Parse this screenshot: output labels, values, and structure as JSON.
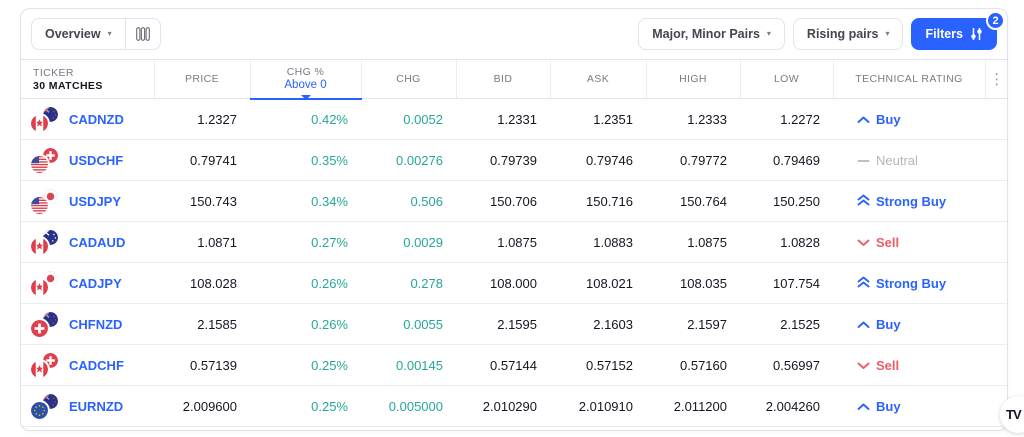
{
  "toolbar": {
    "overview_label": "Overview",
    "pairs_filter_label": "Major, Minor Pairs",
    "rising_filter_label": "Rising pairs",
    "filters_label": "Filters",
    "filters_badge": "2"
  },
  "table": {
    "header": {
      "ticker": "TICKER",
      "matches": "30 MATCHES",
      "price": "PRICE",
      "chg_pct": "CHG %",
      "chg_pct_filter": "Above 0",
      "chg": "CHG",
      "bid": "BID",
      "ask": "ASK",
      "high": "HIGH",
      "low": "LOW",
      "rating": "TECHNICAL RATING"
    },
    "rows": [
      {
        "ticker": "CADNZD",
        "base": "cad",
        "quote": "nzd",
        "price": "1.2327",
        "chg_pct": "0.42%",
        "chg": "0.0052",
        "bid": "1.2331",
        "ask": "1.2351",
        "high": "1.2333",
        "low": "1.2272",
        "rating": "Buy",
        "direction": "up"
      },
      {
        "ticker": "USDCHF",
        "base": "usd",
        "quote": "chf",
        "price": "0.79741",
        "chg_pct": "0.35%",
        "chg": "0.00276",
        "bid": "0.79739",
        "ask": "0.79746",
        "high": "0.79772",
        "low": "0.79469",
        "rating": "Neutral",
        "direction": "neutral"
      },
      {
        "ticker": "USDJPY",
        "base": "usd",
        "quote": "jpy",
        "price": "150.743",
        "chg_pct": "0.34%",
        "chg": "0.506",
        "bid": "150.706",
        "ask": "150.716",
        "high": "150.764",
        "low": "150.250",
        "rating": "Strong Buy",
        "direction": "up2"
      },
      {
        "ticker": "CADAUD",
        "base": "cad",
        "quote": "aud",
        "price": "1.0871",
        "chg_pct": "0.27%",
        "chg": "0.0029",
        "bid": "1.0875",
        "ask": "1.0883",
        "high": "1.0875",
        "low": "1.0828",
        "rating": "Sell",
        "direction": "down"
      },
      {
        "ticker": "CADJPY",
        "base": "cad",
        "quote": "jpy",
        "price": "108.028",
        "chg_pct": "0.26%",
        "chg": "0.278",
        "bid": "108.000",
        "ask": "108.021",
        "high": "108.035",
        "low": "107.754",
        "rating": "Strong Buy",
        "direction": "up2"
      },
      {
        "ticker": "CHFNZD",
        "base": "chf",
        "quote": "nzd",
        "price": "2.1585",
        "chg_pct": "0.26%",
        "chg": "0.0055",
        "bid": "2.1595",
        "ask": "2.1603",
        "high": "2.1597",
        "low": "2.1525",
        "rating": "Buy",
        "direction": "up"
      },
      {
        "ticker": "CADCHF",
        "base": "cad",
        "quote": "chf",
        "price": "0.57139",
        "chg_pct": "0.25%",
        "chg": "0.00145",
        "bid": "0.57144",
        "ask": "0.57152",
        "high": "0.57160",
        "low": "0.56997",
        "rating": "Sell",
        "direction": "down"
      },
      {
        "ticker": "EURNZD",
        "base": "eur",
        "quote": "nzd",
        "price": "2.009600",
        "chg_pct": "0.25%",
        "chg": "0.005000",
        "bid": "2.010290",
        "ask": "2.010910",
        "high": "2.011200",
        "low": "2.004260",
        "rating": "Buy",
        "direction": "up"
      }
    ]
  },
  "watermark_label": "TV",
  "colors": {
    "accent_blue": "#2962ff",
    "positive_green": "#26a69a",
    "sell_red": "#ef5b66",
    "neutral_gray": "#b2b5be"
  }
}
